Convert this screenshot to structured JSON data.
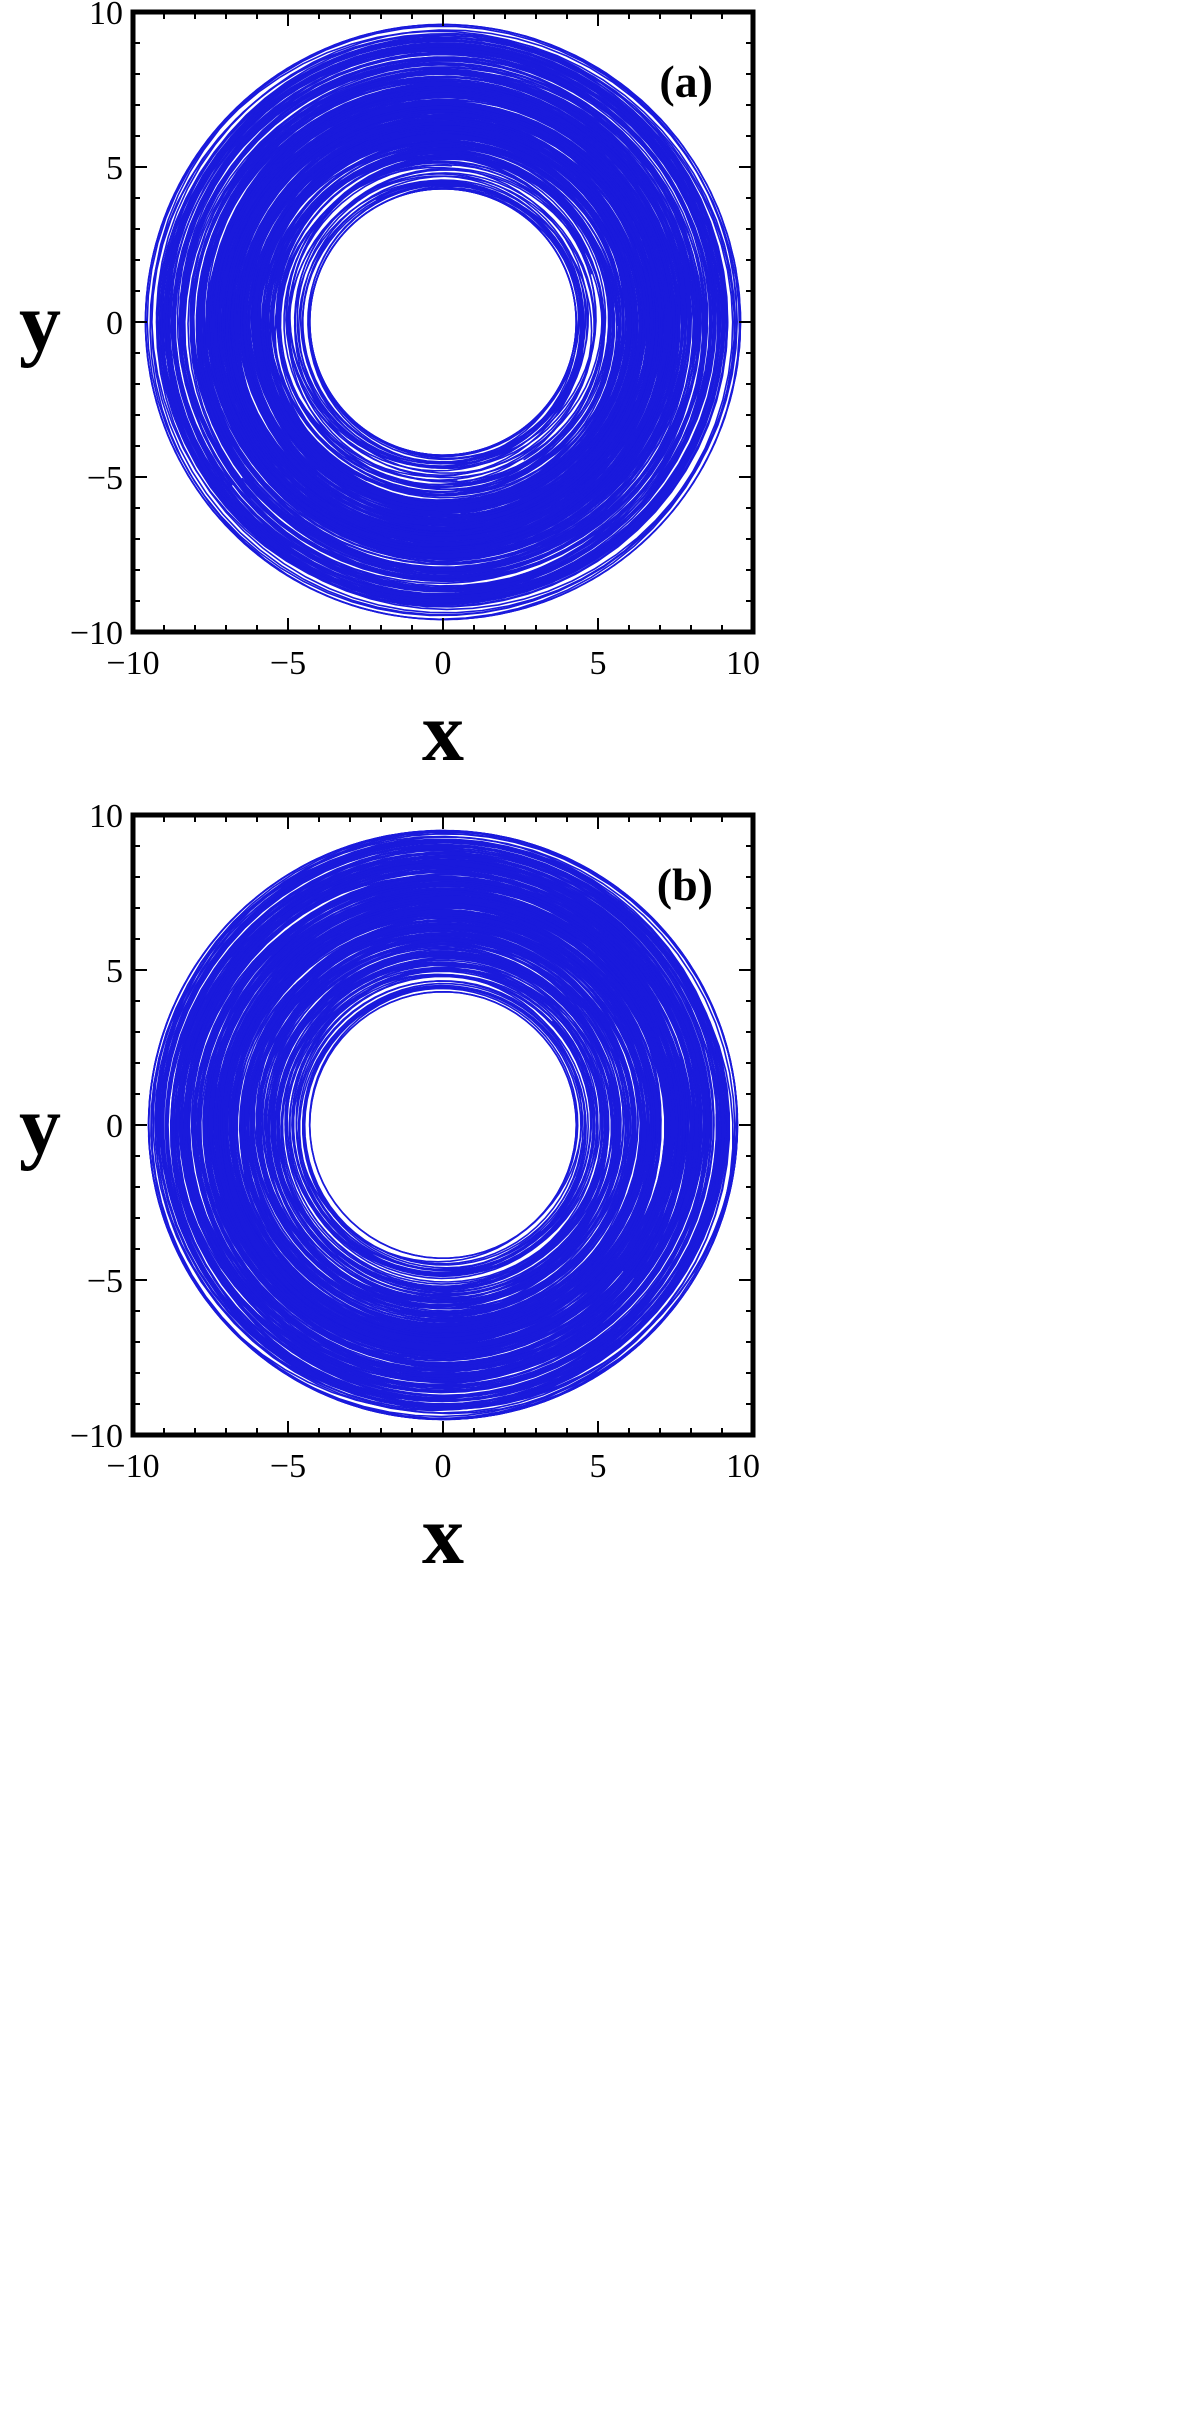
{
  "chart_data": [
    {
      "type": "line",
      "panel_label": "(a)",
      "xlabel": "x",
      "ylabel": "y",
      "xlim": [
        -10,
        10
      ],
      "ylim": [
        -10,
        10
      ],
      "x_ticks": [
        -10,
        -5,
        0,
        5,
        10
      ],
      "y_ticks": [
        -10,
        -5,
        0,
        5,
        10
      ],
      "x_tick_labels": [
        "−10",
        "−5",
        "0",
        "5",
        "10"
      ],
      "y_tick_labels": [
        "−10",
        "−5",
        "0",
        "5",
        "10"
      ],
      "series": [
        {
          "color": "#1a1adc",
          "description_values": {
            "inner_radius_min": 4.3,
            "outer_radius_max": 9.6,
            "dense_band": [
              5.5,
              8.0
            ]
          },
          "seed": 7
        }
      ],
      "grid": false,
      "legend": "none"
    },
    {
      "type": "line",
      "panel_label": "(b)",
      "xlabel": "x",
      "ylabel": "y",
      "xlim": [
        -10,
        10
      ],
      "ylim": [
        -10,
        10
      ],
      "x_ticks": [
        -10,
        -5,
        0,
        5,
        10
      ],
      "y_ticks": [
        -10,
        -5,
        0,
        5,
        10
      ],
      "x_tick_labels": [
        "−10",
        "−5",
        "0",
        "5",
        "10"
      ],
      "y_tick_labels": [
        "−10",
        "−5",
        "0",
        "5",
        "10"
      ],
      "series": [
        {
          "color": "#1a1adc",
          "description_values": {
            "inner_radius_min": 4.3,
            "outer_radius_max": 9.5,
            "dense_band": [
              5.5,
              9.0
            ]
          },
          "seed": 13
        }
      ],
      "grid": false,
      "legend": "none"
    }
  ]
}
